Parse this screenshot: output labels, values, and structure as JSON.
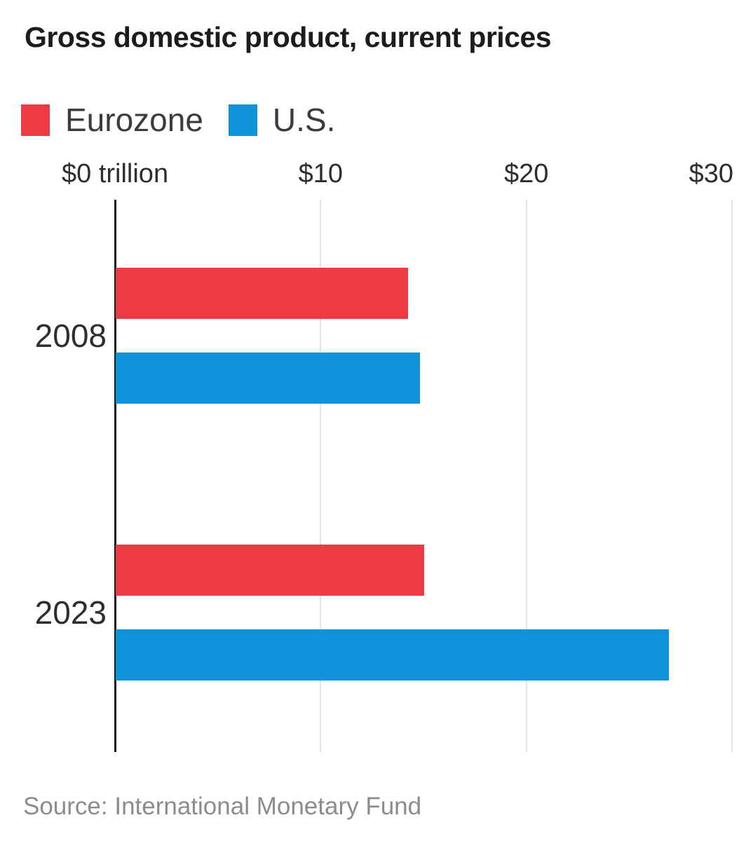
{
  "title": "Gross domestic product, current prices",
  "legend": [
    {
      "label": "Eurozone",
      "color": "#ee3a43"
    },
    {
      "label": "U.S.",
      "color": "#0f93d8"
    }
  ],
  "source": "Source: International Monetary Fund",
  "colors": {
    "eurozone": "#ee3a43",
    "us": "#0f93d8",
    "gridline": "#e3e3e3",
    "axis_line": "#1a1a1a",
    "title_text": "#1c1c1c",
    "source_text": "#8c8c8c"
  },
  "chart_data": {
    "type": "bar",
    "orientation": "horizontal",
    "title": "Gross domestic product, current prices",
    "unit": "trillion USD, current prices",
    "categories": [
      "2008",
      "2023"
    ],
    "series": [
      {
        "name": "Eurozone",
        "color": "#ee3a43",
        "values": [
          14.2,
          15.0
        ]
      },
      {
        "name": "U.S.",
        "color": "#0f93d8",
        "values": [
          14.8,
          26.9
        ]
      }
    ],
    "x_ticks": [
      {
        "value": 0,
        "label": "$0 trillion"
      },
      {
        "value": 10,
        "label": "$10"
      },
      {
        "value": 20,
        "label": "$20"
      },
      {
        "value": 30,
        "label": "$30"
      }
    ],
    "xlim": [
      0,
      30
    ],
    "grid": true,
    "legend_position": "top-left"
  }
}
